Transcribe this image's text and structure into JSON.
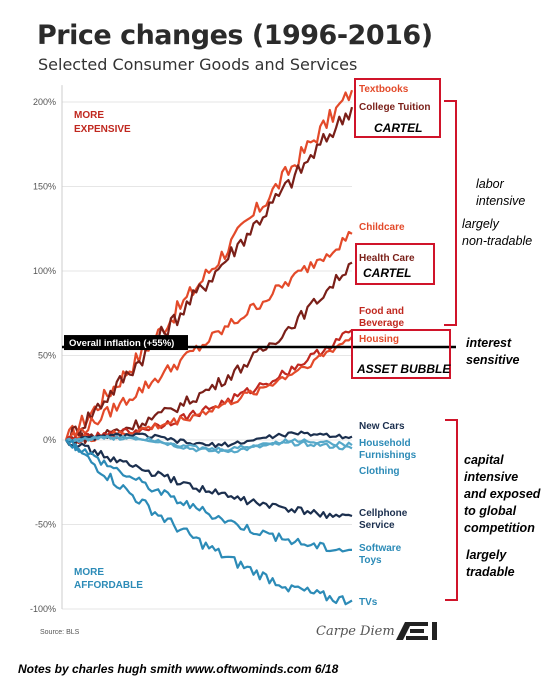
{
  "title": "Price changes (1996-2016)",
  "subtitle": "Selected Consumer Goods and Services",
  "source": "Source: BLS",
  "brand": "Carpe Diem",
  "logo_text": "AEI",
  "footer": "Notes by charles hugh smith   www.oftwominds.com     6/18",
  "colors": {
    "red": "#c0281f",
    "orange": "#e34a2a",
    "darkred": "#7a1f18",
    "navy": "#1b2f4e",
    "blue": "#2c8bb7",
    "lightblue": "#56a8c9",
    "black": "#000000",
    "box_red": "#d0142a"
  },
  "annotations": {
    "more_expensive": [
      "MORE",
      "EXPENSIVE"
    ],
    "more_affordable": [
      "MORE",
      "AFFORDABLE"
    ],
    "inflation_label": "Overall inflation (+55%)",
    "notes_upper": [
      "labor",
      "intensive"
    ],
    "notes_upper2": [
      "largely",
      "non-tradable"
    ],
    "notes_interest": [
      "interest",
      "sensitive"
    ],
    "notes_capital": [
      "capital",
      "intensive",
      "and exposed",
      "to global",
      "competition"
    ],
    "notes_tradable": [
      "largely",
      "tradable"
    ],
    "cartel_1": "CARTEL",
    "cartel_2": "CARTEL",
    "asset_bubble": "ASSET BUBBLE"
  },
  "chart_data": {
    "type": "line",
    "x": [
      1996,
      2016
    ],
    "ylim": [
      -100,
      210
    ],
    "yticks": [
      200,
      150,
      100,
      50,
      0,
      -50,
      -100
    ],
    "ytick_labels": [
      "200%",
      "150%",
      "100%",
      "50%",
      "0%",
      "-50%",
      "-100%"
    ],
    "grid": true,
    "inflation": 55,
    "series": [
      {
        "name": "Textbooks",
        "end": 207,
        "color": "orange"
      },
      {
        "name": "College Tuition",
        "end": 197,
        "color": "darkred"
      },
      {
        "name": "Childcare",
        "end": 122,
        "color": "orange"
      },
      {
        "name": "Health Care",
        "end": 105,
        "color": "darkred"
      },
      {
        "name": "Food and Beverage",
        "end": 65,
        "color": "red"
      },
      {
        "name": "Housing",
        "end": 61,
        "color": "orange"
      },
      {
        "name": "New Cars",
        "end": 2,
        "color": "navy"
      },
      {
        "name": "Household Furnishings",
        "end": -3,
        "color": "lightblue"
      },
      {
        "name": "Clothing",
        "end": -5,
        "color": "lightblue"
      },
      {
        "name": "Cellphone Service",
        "end": -45,
        "color": "navy"
      },
      {
        "name": "Software Toys",
        "end": -65,
        "color": "blue"
      },
      {
        "name": "TVs",
        "end": -95,
        "color": "blue"
      }
    ],
    "label_texts": {
      "Textbooks": [
        "Textbooks"
      ],
      "College Tuition": [
        "College Tuition"
      ],
      "Childcare": [
        "Childcare"
      ],
      "Health Care": [
        "Health Care"
      ],
      "Food and Beverage": [
        "Food and",
        "Beverage"
      ],
      "Housing": [
        "Housing"
      ],
      "New Cars": [
        "New Cars"
      ],
      "Household Furnishings": [
        "Household",
        "Furnishings"
      ],
      "Clothing": [
        "Clothing"
      ],
      "Cellphone Service": [
        "Cellphone",
        "Service"
      ],
      "Software Toys": [
        "Software",
        "Toys"
      ],
      "TVs": [
        "TVs"
      ]
    }
  }
}
